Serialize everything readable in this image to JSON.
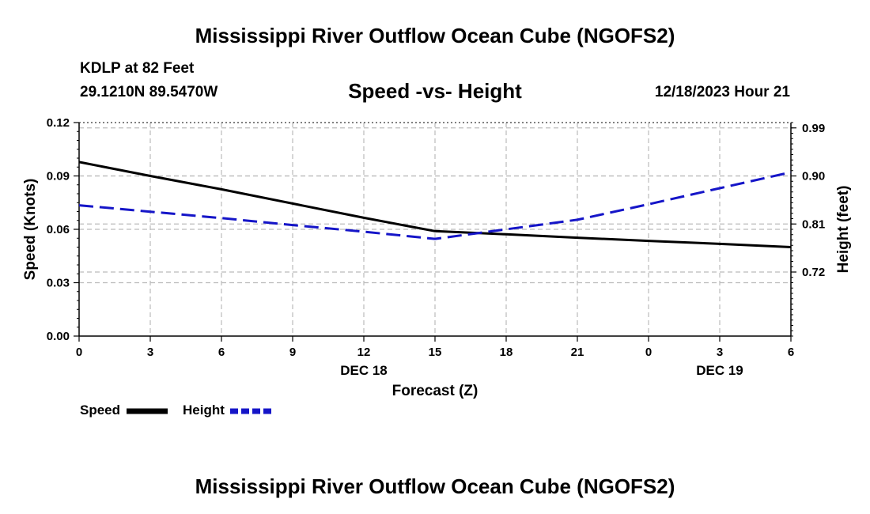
{
  "header": {
    "title": "Mississippi River Outflow Ocean Cube (NGOFS2)",
    "station": "KDLP at 82 Feet",
    "coords": "29.1210N  89.5470W",
    "subtitle": "Speed -vs- Height",
    "datetime": "12/18/2023 Hour 21",
    "footer_title": "Mississippi River Outflow Ocean Cube (NGOFS2)"
  },
  "legend": {
    "speed_label": "Speed",
    "height_label": "Height"
  },
  "colors": {
    "speed": "#000000",
    "height": "#1515c8",
    "grid": "#bbbbbb"
  },
  "chart_data": {
    "type": "line",
    "xlabel": "Forecast (Z)",
    "x_ticks": [
      "0",
      "3",
      "6",
      "9",
      "12",
      "15",
      "18",
      "21",
      "0",
      "3",
      "6"
    ],
    "x_day_labels": [
      {
        "tick_index": 4,
        "label": "DEC 18"
      },
      {
        "tick_index": 9,
        "label": "DEC 19"
      }
    ],
    "x_range_hours": [
      0,
      30
    ],
    "left_axis": {
      "label": "Speed (Knots)",
      "range": [
        0,
        0.12
      ],
      "ticks": [
        "0.00",
        "0.03",
        "0.06",
        "0.09",
        "0.12"
      ]
    },
    "right_axis": {
      "label": "Height (feet)",
      "range": [
        0.6,
        1.0
      ],
      "ticks": [
        "0.72",
        "0.81",
        "0.90",
        "0.99"
      ]
    },
    "series": [
      {
        "name": "Speed",
        "axis": "left",
        "style": "solid",
        "x": [
          0,
          3,
          6,
          9,
          12,
          15,
          18,
          21,
          24,
          27,
          30
        ],
        "values": [
          0.0978,
          0.09,
          0.0825,
          0.0745,
          0.0665,
          0.059,
          0.0572,
          0.0553,
          0.0535,
          0.0518,
          0.05
        ]
      },
      {
        "name": "Height",
        "axis": "right",
        "style": "dashed",
        "x": [
          0,
          3,
          6,
          9,
          12,
          15,
          18,
          21,
          24,
          27,
          30
        ],
        "values": [
          0.845,
          0.833,
          0.821,
          0.808,
          0.7955,
          0.782,
          0.8,
          0.818,
          0.847,
          0.877,
          0.907
        ]
      }
    ]
  }
}
